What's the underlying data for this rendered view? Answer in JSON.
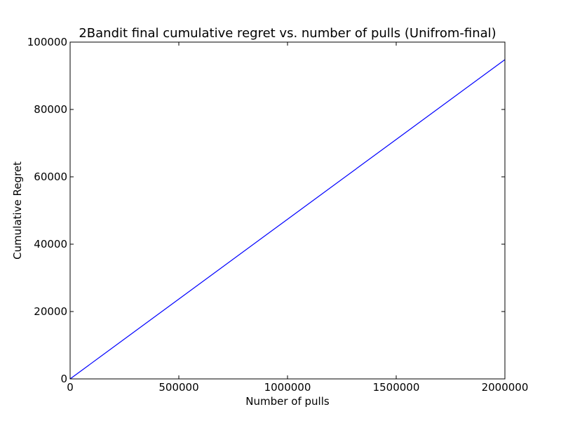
{
  "chart_data": {
    "type": "line",
    "title": "2Bandit final cumulative regret vs. number of pulls (Unifrom-final)",
    "xlabel": "Number of pulls",
    "ylabel": "Cumulative Regret",
    "xlim": [
      0,
      2000000
    ],
    "ylim": [
      0,
      100000
    ],
    "xticks": [
      0,
      500000,
      1000000,
      1500000,
      2000000
    ],
    "xtick_labels": [
      "0",
      "500000",
      "1000000",
      "1500000",
      "2000000"
    ],
    "yticks": [
      0,
      20000,
      40000,
      60000,
      80000,
      100000
    ],
    "ytick_labels": [
      "0",
      "20000",
      "40000",
      "60000",
      "80000",
      "100000"
    ],
    "grid": false,
    "series": [
      {
        "color": "#0000ff",
        "x": [
          0,
          500000,
          1000000,
          1500000,
          2000000
        ],
        "y": [
          0,
          23700,
          47400,
          71100,
          94800
        ]
      }
    ]
  }
}
